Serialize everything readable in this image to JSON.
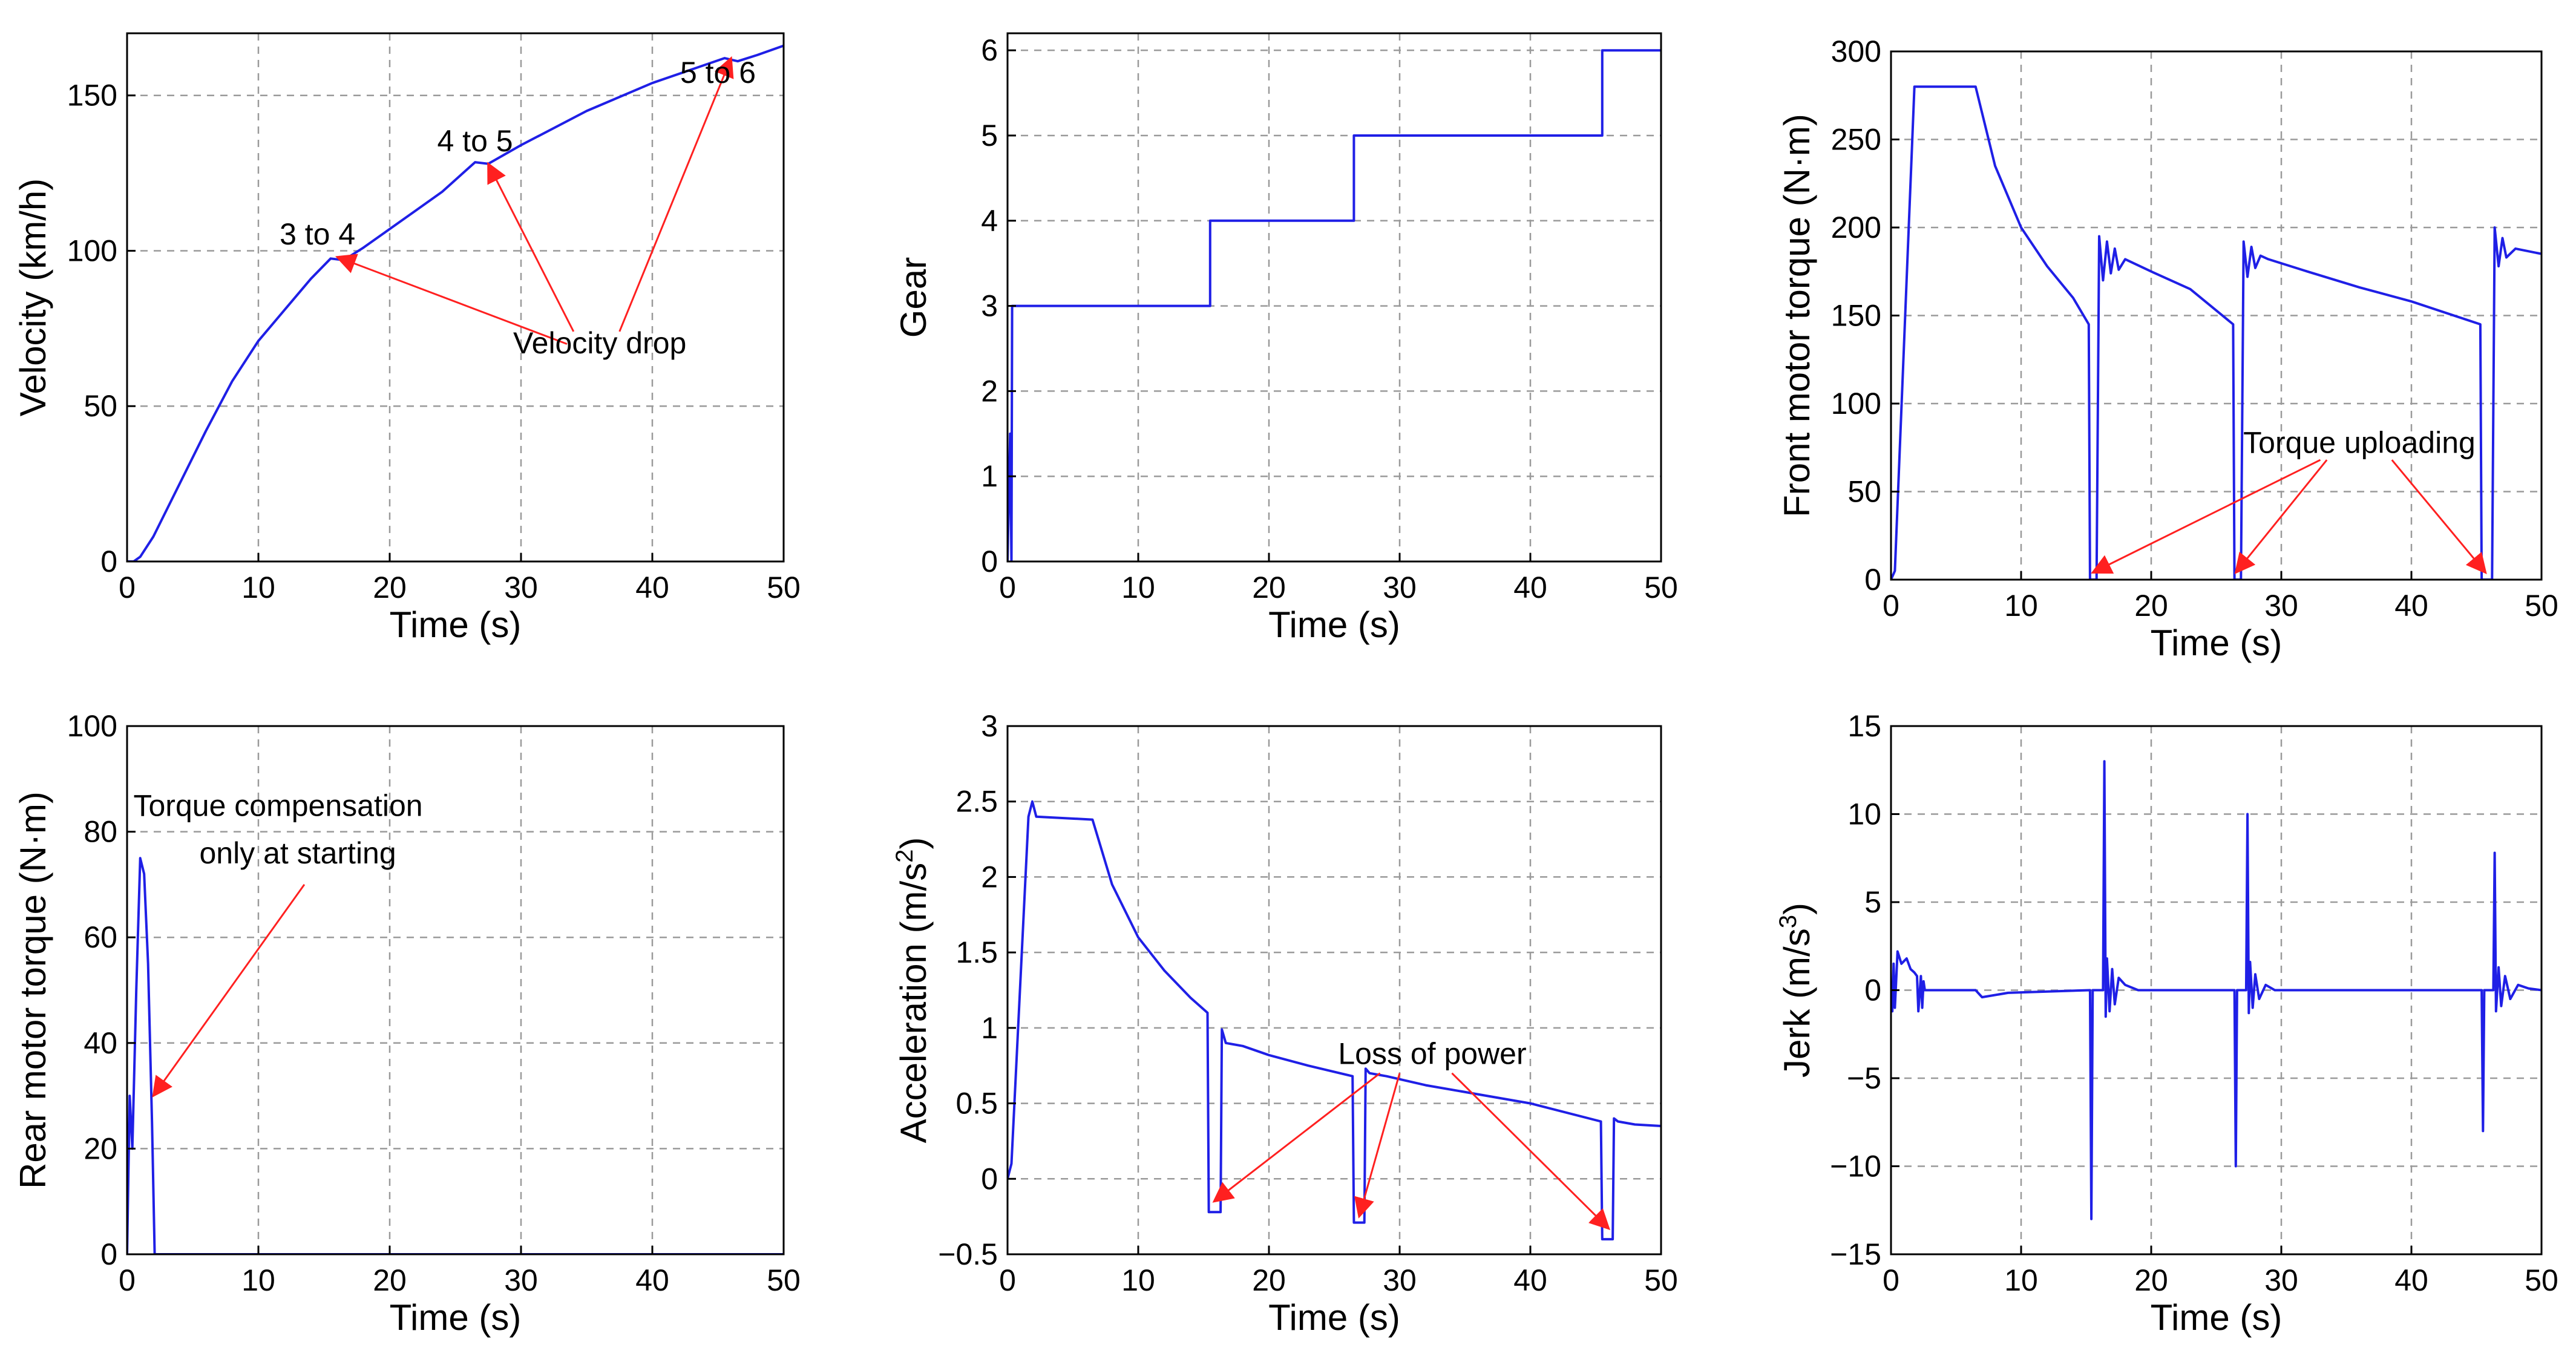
{
  "colors": {
    "series": "#1f1fe6",
    "annotation_arrow": "#ff2020",
    "grid": "#9a9a9a",
    "axes": "#000000"
  },
  "chart_data": [
    {
      "id": "velocity",
      "type": "line",
      "xlabel": "Time (s)",
      "ylabel": "Velocity (km/h)",
      "xlim": [
        0,
        50
      ],
      "ylim": [
        0,
        170
      ],
      "xticks": [
        0,
        10,
        20,
        30,
        40,
        50
      ],
      "yticks": [
        0,
        50,
        100,
        150
      ],
      "grid": true,
      "series": [
        {
          "name": "Velocity",
          "x": [
            0,
            0.5,
            1,
            2,
            4,
            6,
            8,
            10,
            12,
            14,
            15.5,
            16.5,
            18,
            20,
            22,
            24,
            26.5,
            27.5,
            30,
            35,
            40,
            45.5,
            46.5,
            48,
            50
          ],
          "y": [
            0,
            0,
            1.5,
            8,
            25,
            42,
            58,
            71,
            81,
            91,
            97.5,
            97,
            101,
            107,
            113,
            119,
            128.5,
            128,
            134,
            145,
            154,
            162,
            161,
            163,
            166
          ]
        }
      ],
      "annotations": [
        {
          "text": "3 to 4",
          "x": 14.5,
          "y": 102,
          "arrow_to": null
        },
        {
          "text": "4 to 5",
          "x": 26.5,
          "y": 132,
          "arrow_to": null
        },
        {
          "text": "5 to 6",
          "x": 45,
          "y": 154,
          "arrow_to": null
        },
        {
          "text": "Velocity drop",
          "x": 36,
          "y": 67,
          "arrow_to": null
        }
      ],
      "arrows": [
        {
          "from": [
            33.5,
            70
          ],
          "to": [
            16,
            98
          ]
        },
        {
          "from": [
            34,
            74
          ],
          "to": [
            27.5,
            128
          ]
        },
        {
          "from": [
            37.5,
            74
          ],
          "to": [
            46,
            162
          ]
        }
      ]
    },
    {
      "id": "gear",
      "type": "line",
      "xlabel": "Time (s)",
      "ylabel": "Gear",
      "xlim": [
        0,
        50
      ],
      "ylim": [
        0,
        6.2
      ],
      "xticks": [
        0,
        10,
        20,
        30,
        40,
        50
      ],
      "yticks": [
        0,
        1,
        2,
        3,
        4,
        5,
        6
      ],
      "grid": true,
      "series": [
        {
          "name": "Gear",
          "x": [
            0,
            0.2,
            0.3,
            0.35,
            15.5,
            15.5,
            26.5,
            26.5,
            45.5,
            45.5,
            50
          ],
          "y": [
            0,
            1.5,
            0,
            3,
            3,
            4,
            4,
            5,
            5,
            6,
            6
          ]
        }
      ],
      "annotations": [],
      "arrows": []
    },
    {
      "id": "front-torque",
      "type": "line",
      "xlabel": "Time (s)",
      "ylabel": "Front motor torque (N·m)",
      "xlim": [
        0,
        50
      ],
      "ylim": [
        0,
        300
      ],
      "xticks": [
        0,
        10,
        20,
        30,
        40,
        50
      ],
      "yticks": [
        0,
        50,
        100,
        150,
        200,
        250,
        300
      ],
      "grid": true,
      "series": [
        {
          "name": "Front motor torque",
          "x": [
            0,
            0.3,
            1.8,
            6.5,
            8,
            10,
            12,
            14,
            15.2,
            15.3,
            15.8,
            16.0,
            16.3,
            16.6,
            16.9,
            17.2,
            17.5,
            18,
            20,
            23,
            26.3,
            26.4,
            26.9,
            27.1,
            27.4,
            27.7,
            28.0,
            28.4,
            29,
            32,
            36,
            40,
            45.3,
            45.4,
            46.2,
            46.4,
            46.7,
            47.0,
            47.3,
            48,
            50
          ],
          "y": [
            0,
            5,
            280,
            280,
            235,
            200,
            178,
            160,
            145,
            0,
            0,
            195,
            170,
            192,
            174,
            188,
            176,
            182,
            175,
            165,
            145,
            0,
            0,
            192,
            172,
            189,
            177,
            184,
            182,
            175,
            166,
            158,
            145,
            0,
            0,
            200,
            178,
            194,
            183,
            188,
            185
          ]
        }
      ],
      "annotations": [
        {
          "text": "Torque uploading",
          "x": 36,
          "y": 72,
          "arrow_to": null
        }
      ],
      "arrows": [
        {
          "from": [
            33,
            68
          ],
          "to": [
            15.5,
            4
          ]
        },
        {
          "from": [
            33.5,
            68
          ],
          "to": [
            26.5,
            4
          ]
        },
        {
          "from": [
            38.5,
            68
          ],
          "to": [
            45.7,
            4
          ]
        }
      ]
    },
    {
      "id": "rear-torque",
      "type": "line",
      "xlabel": "Time (s)",
      "ylabel": "Rear motor torque (N·m)",
      "xlim": [
        0,
        50
      ],
      "ylim": [
        0,
        100
      ],
      "xticks": [
        0,
        10,
        20,
        30,
        40,
        50
      ],
      "yticks": [
        0,
        20,
        40,
        60,
        80,
        100
      ],
      "grid": true,
      "series": [
        {
          "name": "Rear motor torque",
          "x": [
            0,
            0.2,
            0.4,
            0.7,
            1.0,
            1.3,
            1.6,
            1.9,
            2.1,
            2.3,
            50
          ],
          "y": [
            0,
            30,
            20,
            50,
            75,
            72,
            55,
            25,
            0,
            0,
            0
          ]
        }
      ],
      "annotations": [
        {
          "text": "Torque compensation",
          "x": 11.5,
          "y": 83,
          "arrow_to": null
        },
        {
          "text": "only at starting",
          "x": 13,
          "y": 74,
          "arrow_to": null
        }
      ],
      "arrows": [
        {
          "from": [
            13.5,
            70
          ],
          "to": [
            2.0,
            30
          ]
        }
      ]
    },
    {
      "id": "acceleration",
      "type": "line",
      "xlabel": "Time (s)",
      "ylabel": "Acceleration (m/s",
      "ylabel_sup": "2",
      "ylabel_end": ")",
      "xlim": [
        0,
        50
      ],
      "ylim": [
        -0.5,
        3
      ],
      "xticks": [
        0,
        10,
        20,
        30,
        40,
        50
      ],
      "yticks": [
        -0.5,
        0,
        0.5,
        1,
        1.5,
        2,
        2.5,
        3
      ],
      "ytick_labels": [
        "−0.5",
        "0",
        "0.5",
        "1",
        "1.5",
        "2",
        "2.5",
        "3"
      ],
      "grid": true,
      "series": [
        {
          "name": "Acceleration",
          "x": [
            0,
            0.3,
            1.6,
            1.9,
            2.2,
            6.5,
            8,
            10,
            12,
            14,
            15.3,
            15.4,
            16.3,
            16.4,
            16.7,
            18,
            20,
            23,
            26.4,
            26.5,
            27.3,
            27.4,
            27.7,
            29,
            32,
            36,
            40,
            45.4,
            45.5,
            46.3,
            46.4,
            46.7,
            48,
            50
          ],
          "y": [
            0,
            0.1,
            2.4,
            2.5,
            2.4,
            2.38,
            1.95,
            1.6,
            1.38,
            1.2,
            1.1,
            -0.22,
            -0.22,
            0.99,
            0.9,
            0.88,
            0.82,
            0.75,
            0.68,
            -0.29,
            -0.29,
            0.73,
            0.7,
            0.68,
            0.62,
            0.56,
            0.5,
            0.38,
            -0.4,
            -0.4,
            0.4,
            0.38,
            0.36,
            0.35
          ]
        }
      ],
      "annotations": [
        {
          "text": "Loss of power",
          "x": 32.5,
          "y": 0.76,
          "arrow_to": null
        }
      ],
      "arrows": [
        {
          "from": [
            28.5,
            0.7
          ],
          "to": [
            15.8,
            -0.15
          ]
        },
        {
          "from": [
            30,
            0.7
          ],
          "to": [
            26.9,
            -0.25
          ]
        },
        {
          "from": [
            34,
            0.7
          ],
          "to": [
            46,
            -0.33
          ]
        }
      ]
    },
    {
      "id": "jerk",
      "type": "line",
      "xlabel": "Time (s)",
      "ylabel": "Jerk (m/s",
      "ylabel_sup": "3",
      "ylabel_end": ")",
      "xlim": [
        0,
        50
      ],
      "ylim": [
        -15,
        15
      ],
      "xticks": [
        0,
        10,
        20,
        30,
        40,
        50
      ],
      "yticks": [
        -15,
        -10,
        -5,
        0,
        5,
        10,
        15
      ],
      "ytick_labels": [
        "−15",
        "−10",
        "−5",
        "0",
        "5",
        "10",
        "15"
      ],
      "grid": true,
      "series": [
        {
          "name": "Jerk",
          "x": [
            0,
            0.1,
            0.2,
            0.3,
            0.5,
            0.8,
            1.2,
            1.5,
            1.8,
            2.0,
            2.1,
            2.3,
            2.4,
            2.5,
            2.6,
            3,
            6.5,
            7,
            9,
            15.3,
            15.4,
            15.5,
            15.6,
            16.3,
            16.4,
            16.5,
            16.6,
            16.8,
            17.0,
            17.2,
            17.5,
            18,
            19,
            26.4,
            26.5,
            26.6,
            27.3,
            27.4,
            27.5,
            27.6,
            27.8,
            28.0,
            28.3,
            28.8,
            29.5,
            45.4,
            45.5,
            45.6,
            46.3,
            46.4,
            46.5,
            46.7,
            46.9,
            47.2,
            47.6,
            48.2,
            49,
            50
          ],
          "y": [
            0,
            -1.2,
            1.5,
            -1,
            2.2,
            1.5,
            1.8,
            1.2,
            1,
            0.8,
            -1.2,
            0.8,
            -1,
            0.5,
            0,
            0,
            0,
            -0.4,
            -0.15,
            0,
            -13,
            0,
            0,
            0,
            13,
            -1.5,
            1.8,
            -1.2,
            1.2,
            -0.8,
            0.7,
            0.3,
            0,
            0,
            -10,
            0,
            0,
            10,
            -1.3,
            1.6,
            -1,
            0.9,
            -0.5,
            0.3,
            0,
            0,
            -8,
            0,
            0,
            7.8,
            -1.2,
            1.3,
            -0.9,
            0.8,
            -0.5,
            0.3,
            0.1,
            0
          ]
        }
      ],
      "annotations": [],
      "arrows": []
    }
  ]
}
